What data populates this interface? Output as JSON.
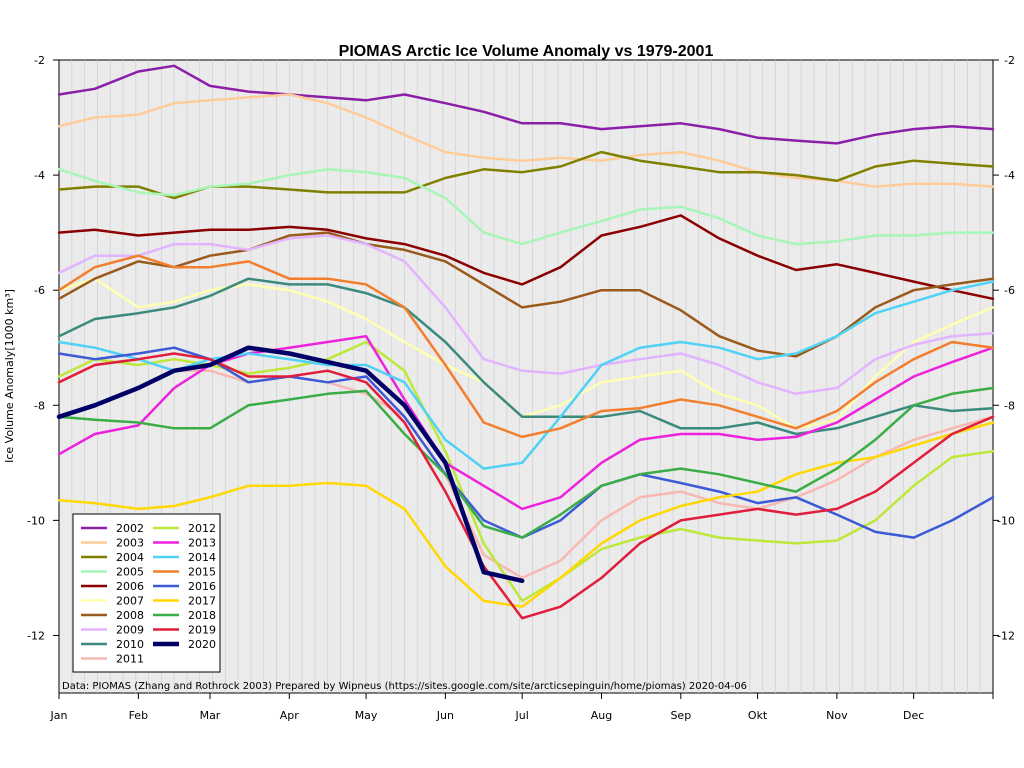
{
  "chart_data": {
    "type": "line",
    "title": "PIOMAS Arctic Ice Volume Anomaly vs 1979-2001",
    "xlabel": "",
    "ylabel": "Ice Volume Anomaly[1000 km³]",
    "xlim": [
      1,
      366
    ],
    "ylim": [
      -13,
      -2
    ],
    "month_ticks": [
      {
        "label": "Jan",
        "day": 1
      },
      {
        "label": "Feb",
        "day": 32
      },
      {
        "label": "Mar",
        "day": 60
      },
      {
        "label": "Apr",
        "day": 91
      },
      {
        "label": "May",
        "day": 121
      },
      {
        "label": "Jun",
        "day": 152
      },
      {
        "label": "Jul",
        "day": 182
      },
      {
        "label": "Aug",
        "day": 213
      },
      {
        "label": "Sep",
        "day": 244
      },
      {
        "label": "Okt",
        "day": 274
      },
      {
        "label": "Nov",
        "day": 305
      },
      {
        "label": "Dec",
        "day": 335
      }
    ],
    "y_ticks": [
      -2,
      -4,
      -6,
      -8,
      -10,
      -12
    ],
    "y_tick_labels": [
      "-2",
      "-4",
      "-6",
      "-8",
      "-10",
      "-12"
    ],
    "grid": "vertical",
    "legend_position": "bottom-left",
    "annotation": "Data: PIOMAS (Zhang and Rothrock 2003) Prepared by Wipneus (https://sites.google.com/site/arcticsepinguin/home/piomas)    2020-04-06",
    "x_days": [
      1,
      15,
      32,
      46,
      60,
      75,
      91,
      106,
      121,
      136,
      152,
      167,
      182,
      197,
      213,
      228,
      244,
      259,
      274,
      289,
      305,
      320,
      335,
      350,
      366
    ],
    "series": [
      {
        "name": "2002",
        "color": "#8b1fa8",
        "width": 2.5,
        "values": [
          -2.6,
          -2.5,
          -2.2,
          -2.1,
          -2.45,
          -2.55,
          -2.6,
          -2.65,
          -2.7,
          -2.6,
          -2.75,
          -2.9,
          -3.1,
          -3.1,
          -3.2,
          -3.15,
          -3.1,
          -3.2,
          -3.35,
          -3.4,
          -3.45,
          -3.3,
          -3.2,
          -3.15,
          -3.2
        ]
      },
      {
        "name": "2003",
        "color": "#ffcc99",
        "width": 2.5,
        "values": [
          -3.15,
          -3.0,
          -2.95,
          -2.75,
          -2.7,
          -2.65,
          -2.6,
          -2.75,
          -3.0,
          -3.3,
          -3.6,
          -3.7,
          -3.75,
          -3.7,
          -3.75,
          -3.65,
          -3.6,
          -3.75,
          -3.95,
          -4.05,
          -4.1,
          -4.2,
          -4.15,
          -4.15,
          -4.2
        ]
      },
      {
        "name": "2004",
        "color": "#808000",
        "width": 2.5,
        "values": [
          -4.25,
          -4.2,
          -4.2,
          -4.4,
          -4.2,
          -4.2,
          -4.25,
          -4.3,
          -4.3,
          -4.3,
          -4.05,
          -3.9,
          -3.95,
          -3.85,
          -3.6,
          -3.75,
          -3.85,
          -3.95,
          -3.95,
          -4.0,
          -4.1,
          -3.85,
          -3.75,
          -3.8,
          -3.85
        ]
      },
      {
        "name": "2005",
        "color": "#a8f5b8",
        "width": 2.5,
        "values": [
          -3.9,
          -4.1,
          -4.3,
          -4.35,
          -4.2,
          -4.15,
          -4.0,
          -3.9,
          -3.95,
          -4.05,
          -4.4,
          -5.0,
          -5.2,
          -5.0,
          -4.8,
          -4.6,
          -4.55,
          -4.75,
          -5.05,
          -5.2,
          -5.15,
          -5.05,
          -5.05,
          -5.0,
          -5.0
        ]
      },
      {
        "name": "2006",
        "color": "#8b0000",
        "width": 2.5,
        "values": [
          -5.0,
          -4.95,
          -5.05,
          -5.0,
          -4.95,
          -4.95,
          -4.9,
          -4.95,
          -5.1,
          -5.2,
          -5.4,
          -5.7,
          -5.9,
          -5.6,
          -5.05,
          -4.9,
          -4.7,
          -5.1,
          -5.4,
          -5.65,
          -5.55,
          -5.7,
          -5.85,
          -6.0,
          -6.15
        ]
      },
      {
        "name": "2007",
        "color": "#ffffb3",
        "width": 2.5,
        "values": [
          -6.0,
          -5.8,
          -6.3,
          -6.2,
          -6.0,
          -5.9,
          -6.0,
          -6.2,
          -6.5,
          -6.9,
          -7.3,
          -7.6,
          -8.2,
          -8.0,
          -7.6,
          -7.5,
          -7.4,
          -7.8,
          -8.0,
          -8.4,
          -8.25,
          -7.5,
          -6.9,
          -6.6,
          -6.3
        ]
      },
      {
        "name": "2008",
        "color": "#9a5a1c",
        "width": 2.5,
        "values": [
          -6.15,
          -5.8,
          -5.5,
          -5.6,
          -5.4,
          -5.3,
          -5.05,
          -5.0,
          -5.2,
          -5.3,
          -5.5,
          -5.9,
          -6.3,
          -6.2,
          -6.0,
          -6.0,
          -6.35,
          -6.8,
          -7.05,
          -7.15,
          -6.8,
          -6.3,
          -6.0,
          -5.9,
          -5.8
        ]
      },
      {
        "name": "2009",
        "color": "#e2b4ff",
        "width": 2.5,
        "values": [
          -5.7,
          -5.4,
          -5.4,
          -5.2,
          -5.2,
          -5.3,
          -5.1,
          -5.05,
          -5.2,
          -5.5,
          -6.3,
          -7.2,
          -7.4,
          -7.45,
          -7.3,
          -7.2,
          -7.1,
          -7.3,
          -7.6,
          -7.8,
          -7.7,
          -7.2,
          -6.95,
          -6.8,
          -6.75
        ]
      },
      {
        "name": "2010",
        "color": "#3c8a7e",
        "width": 2.5,
        "values": [
          -6.8,
          -6.5,
          -6.4,
          -6.3,
          -6.1,
          -5.8,
          -5.9,
          -5.9,
          -6.05,
          -6.3,
          -6.9,
          -7.6,
          -8.2,
          -8.2,
          -8.2,
          -8.1,
          -8.4,
          -8.4,
          -8.3,
          -8.5,
          -8.4,
          -8.2,
          -8.0,
          -8.1,
          -8.05
        ]
      },
      {
        "name": "2011",
        "color": "#f7b8b2",
        "width": 2.5,
        "values": [
          -7.6,
          -7.3,
          -7.2,
          -7.4,
          -7.4,
          -7.6,
          -7.5,
          -7.6,
          -7.8,
          -8.2,
          -9.2,
          -10.6,
          -11.0,
          -10.7,
          -10.0,
          -9.6,
          -9.5,
          -9.7,
          -9.8,
          -9.6,
          -9.3,
          -8.9,
          -8.6,
          -8.4,
          -8.2
        ]
      },
      {
        "name": "2012",
        "color": "#bde83a",
        "width": 2.5,
        "values": [
          -7.5,
          -7.2,
          -7.3,
          -7.2,
          -7.3,
          -7.45,
          -7.35,
          -7.2,
          -6.9,
          -7.4,
          -8.8,
          -10.4,
          -11.4,
          -11.0,
          -10.5,
          -10.3,
          -10.15,
          -10.3,
          -10.35,
          -10.4,
          -10.35,
          -10.0,
          -9.4,
          -8.9,
          -8.8
        ]
      },
      {
        "name": "2013",
        "color": "#ee22dd",
        "width": 2.5,
        "values": [
          -8.85,
          -8.5,
          -8.35,
          -7.7,
          -7.3,
          -7.1,
          -7.0,
          -6.9,
          -6.8,
          -7.9,
          -9.0,
          -9.4,
          -9.8,
          -9.6,
          -9.0,
          -8.6,
          -8.5,
          -8.5,
          -8.6,
          -8.55,
          -8.3,
          -7.9,
          -7.5,
          -7.25,
          -7.0
        ]
      },
      {
        "name": "2014",
        "color": "#4fd2f5",
        "width": 2.5,
        "values": [
          -6.9,
          -7.0,
          -7.2,
          -7.4,
          -7.2,
          -7.1,
          -7.2,
          -7.3,
          -7.3,
          -7.6,
          -8.6,
          -9.1,
          -9.0,
          -8.2,
          -7.3,
          -7.0,
          -6.9,
          -7.0,
          -7.2,
          -7.1,
          -6.8,
          -6.4,
          -6.2,
          -6.0,
          -5.85
        ]
      },
      {
        "name": "2015",
        "color": "#f27e2e",
        "width": 2.5,
        "values": [
          -6.0,
          -5.6,
          -5.4,
          -5.6,
          -5.6,
          -5.5,
          -5.8,
          -5.8,
          -5.9,
          -6.3,
          -7.3,
          -8.3,
          -8.55,
          -8.4,
          -8.1,
          -8.05,
          -7.9,
          -8.0,
          -8.2,
          -8.4,
          -8.1,
          -7.6,
          -7.2,
          -6.9,
          -7.0
        ]
      },
      {
        "name": "2016",
        "color": "#3c5ad6",
        "width": 2.5,
        "values": [
          -7.1,
          -7.2,
          -7.1,
          -7.0,
          -7.2,
          -7.6,
          -7.5,
          -7.6,
          -7.5,
          -8.2,
          -9.2,
          -10.0,
          -10.3,
          -10.0,
          -9.4,
          -9.2,
          -9.35,
          -9.5,
          -9.7,
          -9.6,
          -9.9,
          -10.2,
          -10.3,
          -10.0,
          -9.6
        ]
      },
      {
        "name": "2017",
        "color": "#ffd800",
        "width": 2.5,
        "values": [
          -9.65,
          -9.7,
          -9.8,
          -9.75,
          -9.6,
          -9.4,
          -9.4,
          -9.35,
          -9.4,
          -9.8,
          -10.8,
          -11.4,
          -11.5,
          -11.0,
          -10.4,
          -10.0,
          -9.75,
          -9.6,
          -9.5,
          -9.2,
          -9.0,
          -8.9,
          -8.7,
          -8.5,
          -8.3
        ]
      },
      {
        "name": "2018",
        "color": "#3aad46",
        "width": 2.5,
        "values": [
          -8.2,
          -8.25,
          -8.3,
          -8.4,
          -8.4,
          -8.0,
          -7.9,
          -7.8,
          -7.75,
          -8.5,
          -9.2,
          -10.1,
          -10.3,
          -9.9,
          -9.4,
          -9.2,
          -9.1,
          -9.2,
          -9.35,
          -9.5,
          -9.1,
          -8.6,
          -8.0,
          -7.8,
          -7.7
        ]
      },
      {
        "name": "2019",
        "color": "#e01e3c",
        "width": 2.5,
        "values": [
          -7.6,
          -7.3,
          -7.2,
          -7.1,
          -7.2,
          -7.5,
          -7.5,
          -7.4,
          -7.6,
          -8.3,
          -9.5,
          -10.8,
          -11.7,
          -11.5,
          -11.0,
          -10.4,
          -10.0,
          -9.9,
          -9.8,
          -9.9,
          -9.8,
          -9.5,
          -9.0,
          -8.5,
          -8.2
        ]
      },
      {
        "name": "2020",
        "color": "#000066",
        "width": 4.5,
        "values": [
          -8.2,
          -8.0,
          -7.7,
          -7.4,
          -7.3,
          -7.0,
          -7.1,
          -7.25,
          -7.4,
          -8.0,
          -9.0,
          -10.9,
          -11.05
        ]
      }
    ]
  }
}
